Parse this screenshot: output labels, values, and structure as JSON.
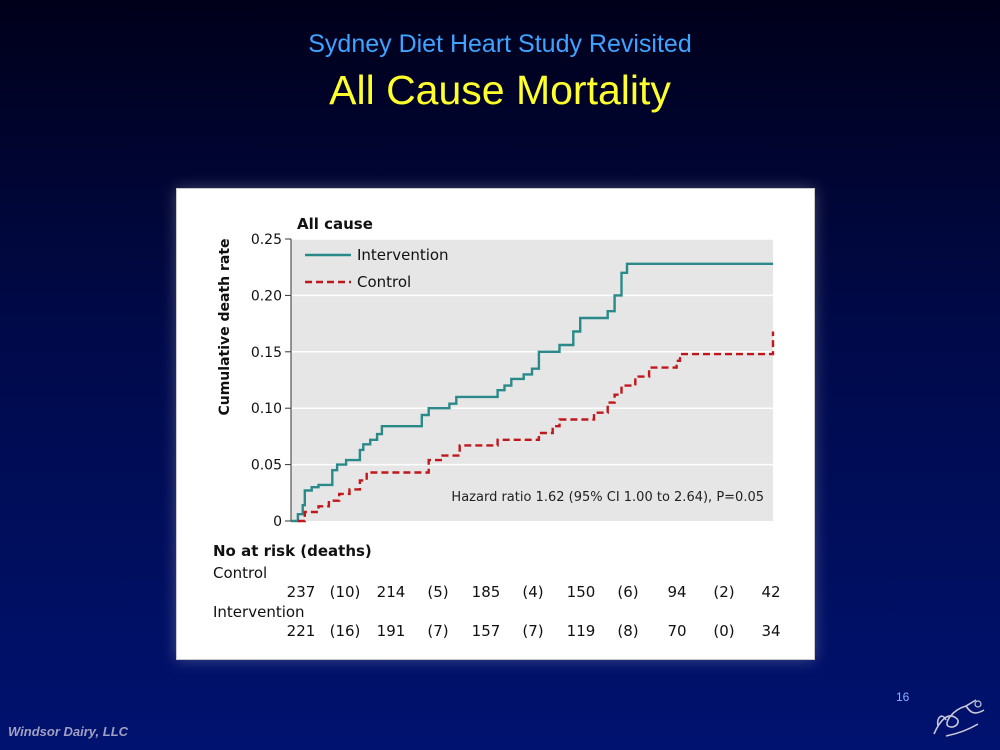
{
  "slide": {
    "subtitle": "Sydney Diet Heart Study Revisited",
    "title": "All Cause Mortality",
    "page_number": "16",
    "footer": "Windsor Dairy, LLC"
  },
  "chart_data": {
    "type": "line",
    "title": "All cause",
    "ylabel": "Cumulative death rate",
    "xlabel": "",
    "ylim": [
      0,
      0.25
    ],
    "xlim": [
      0,
      7
    ],
    "yticks": [
      "0",
      "0.05",
      "0.10",
      "0.15",
      "0.20",
      "0.25"
    ],
    "grid": true,
    "legend_position": "top-left",
    "annotation": "Hazard ratio 1.62 (95% CI 1.00 to 2.64), P=0.05",
    "series": [
      {
        "name": "Intervention",
        "color": "#2a8a8a",
        "style": "solid",
        "points": [
          [
            0,
            0
          ],
          [
            0.1,
            0
          ],
          [
            0.1,
            0.006
          ],
          [
            0.17,
            0.006
          ],
          [
            0.17,
            0.014
          ],
          [
            0.2,
            0.014
          ],
          [
            0.2,
            0.027
          ],
          [
            0.3,
            0.027
          ],
          [
            0.3,
            0.03
          ],
          [
            0.4,
            0.03
          ],
          [
            0.4,
            0.032
          ],
          [
            0.6,
            0.032
          ],
          [
            0.6,
            0.045
          ],
          [
            0.67,
            0.045
          ],
          [
            0.67,
            0.05
          ],
          [
            0.8,
            0.05
          ],
          [
            0.8,
            0.054
          ],
          [
            1.0,
            0.054
          ],
          [
            1.0,
            0.063
          ],
          [
            1.05,
            0.063
          ],
          [
            1.05,
            0.068
          ],
          [
            1.15,
            0.068
          ],
          [
            1.15,
            0.072
          ],
          [
            1.25,
            0.072
          ],
          [
            1.25,
            0.077
          ],
          [
            1.32,
            0.077
          ],
          [
            1.32,
            0.084
          ],
          [
            1.9,
            0.084
          ],
          [
            1.9,
            0.094
          ],
          [
            2.0,
            0.094
          ],
          [
            2.0,
            0.1
          ],
          [
            2.3,
            0.1
          ],
          [
            2.3,
            0.104
          ],
          [
            2.4,
            0.104
          ],
          [
            2.4,
            0.11
          ],
          [
            3.0,
            0.11
          ],
          [
            3.0,
            0.116
          ],
          [
            3.1,
            0.116
          ],
          [
            3.1,
            0.12
          ],
          [
            3.2,
            0.12
          ],
          [
            3.2,
            0.126
          ],
          [
            3.38,
            0.126
          ],
          [
            3.38,
            0.13
          ],
          [
            3.5,
            0.13
          ],
          [
            3.5,
            0.135
          ],
          [
            3.6,
            0.135
          ],
          [
            3.6,
            0.15
          ],
          [
            3.9,
            0.15
          ],
          [
            3.9,
            0.156
          ],
          [
            4.1,
            0.156
          ],
          [
            4.1,
            0.168
          ],
          [
            4.2,
            0.168
          ],
          [
            4.2,
            0.18
          ],
          [
            4.6,
            0.18
          ],
          [
            4.6,
            0.186
          ],
          [
            4.7,
            0.186
          ],
          [
            4.7,
            0.2
          ],
          [
            4.8,
            0.2
          ],
          [
            4.8,
            0.22
          ],
          [
            4.88,
            0.22
          ],
          [
            4.88,
            0.228
          ],
          [
            7.0,
            0.228
          ]
        ]
      },
      {
        "name": "Control",
        "color": "#c0171c",
        "style": "dashed",
        "points": [
          [
            0.1,
            0
          ],
          [
            0.2,
            0
          ],
          [
            0.2,
            0.008
          ],
          [
            0.4,
            0.008
          ],
          [
            0.4,
            0.013
          ],
          [
            0.55,
            0.013
          ],
          [
            0.55,
            0.018
          ],
          [
            0.7,
            0.018
          ],
          [
            0.7,
            0.024
          ],
          [
            0.85,
            0.024
          ],
          [
            0.85,
            0.028
          ],
          [
            1.0,
            0.028
          ],
          [
            1.0,
            0.036
          ],
          [
            1.1,
            0.036
          ],
          [
            1.1,
            0.043
          ],
          [
            2.0,
            0.043
          ],
          [
            2.0,
            0.054
          ],
          [
            2.2,
            0.054
          ],
          [
            2.2,
            0.058
          ],
          [
            2.45,
            0.058
          ],
          [
            2.45,
            0.067
          ],
          [
            3.0,
            0.067
          ],
          [
            3.0,
            0.072
          ],
          [
            3.6,
            0.072
          ],
          [
            3.6,
            0.078
          ],
          [
            3.8,
            0.078
          ],
          [
            3.8,
            0.084
          ],
          [
            3.9,
            0.084
          ],
          [
            3.9,
            0.09
          ],
          [
            4.4,
            0.09
          ],
          [
            4.4,
            0.096
          ],
          [
            4.6,
            0.096
          ],
          [
            4.6,
            0.105
          ],
          [
            4.7,
            0.105
          ],
          [
            4.7,
            0.112
          ],
          [
            4.8,
            0.112
          ],
          [
            4.8,
            0.12
          ],
          [
            5.0,
            0.12
          ],
          [
            5.0,
            0.128
          ],
          [
            5.2,
            0.128
          ],
          [
            5.2,
            0.136
          ],
          [
            5.6,
            0.136
          ],
          [
            5.6,
            0.142
          ],
          [
            5.65,
            0.142
          ],
          [
            5.65,
            0.148
          ],
          [
            7.0,
            0.148
          ],
          [
            7.0,
            0.168
          ]
        ]
      }
    ],
    "at_risk": {
      "header": "No at risk (deaths)",
      "rows": [
        {
          "label": "Control",
          "values": [
            "237",
            "(10)",
            "214",
            "(5)",
            "185",
            "(4)",
            "150",
            "(6)",
            "94",
            "(2)",
            "42"
          ]
        },
        {
          "label": "Intervention",
          "values": [
            "221",
            "(16)",
            "191",
            "(7)",
            "157",
            "(7)",
            "119",
            "(8)",
            "70",
            "(0)",
            "34"
          ]
        }
      ]
    }
  }
}
